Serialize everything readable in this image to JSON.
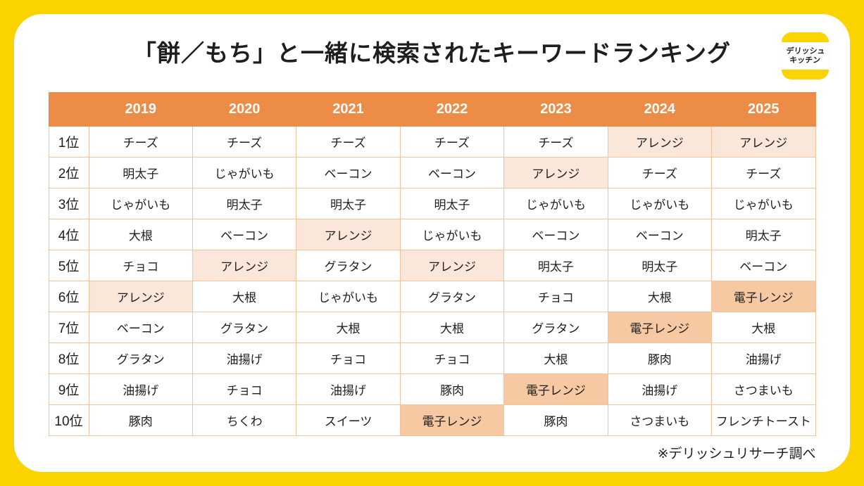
{
  "title": "「餅／もち」と一緒に検索されたキーワードランキング",
  "logo": {
    "line1": "デリッシュ",
    "line2": "キッチン"
  },
  "footnote": "※デリッシュリサーチ調べ",
  "colors": {
    "frame_yellow": "#FBD301",
    "panel_white": "#FFFFFF",
    "header_orange": "#ED8C46",
    "highlight_light": "#FAE7DA",
    "highlight_dark": "#F6C9A3",
    "cell_border": "#F3C49C",
    "text_dark": "#1E1E1E"
  },
  "chart_data": {
    "type": "table",
    "title": "「餅／もち」と一緒に検索されたキーワードランキング",
    "columns": [
      "",
      "2019",
      "2020",
      "2021",
      "2022",
      "2023",
      "2024",
      "2025"
    ],
    "rank_labels": [
      "1位",
      "2位",
      "3位",
      "4位",
      "5位",
      "6位",
      "7位",
      "8位",
      "9位",
      "10位"
    ],
    "highlight_legend": {
      "light": "アレンジ (light orange highlight)",
      "dark": "電子レンジ (dark orange highlight)"
    },
    "rows": [
      {
        "rank": "1位",
        "cells": [
          "チーズ",
          "チーズ",
          "チーズ",
          "チーズ",
          "チーズ",
          "アレンジ",
          "アレンジ"
        ],
        "highlights": [
          "",
          "",
          "",
          "",
          "",
          "light",
          "light"
        ]
      },
      {
        "rank": "2位",
        "cells": [
          "明太子",
          "じゃがいも",
          "ベーコン",
          "ベーコン",
          "アレンジ",
          "チーズ",
          "チーズ"
        ],
        "highlights": [
          "",
          "",
          "",
          "",
          "light",
          "",
          ""
        ]
      },
      {
        "rank": "3位",
        "cells": [
          "じゃがいも",
          "明太子",
          "明太子",
          "明太子",
          "じゃがいも",
          "じゃがいも",
          "じゃがいも"
        ],
        "highlights": [
          "",
          "",
          "",
          "",
          "",
          "",
          ""
        ]
      },
      {
        "rank": "4位",
        "cells": [
          "大根",
          "ベーコン",
          "アレンジ",
          "じゃがいも",
          "ベーコン",
          "ベーコン",
          "明太子"
        ],
        "highlights": [
          "",
          "",
          "light",
          "",
          "",
          "",
          ""
        ]
      },
      {
        "rank": "5位",
        "cells": [
          "チョコ",
          "アレンジ",
          "グラタン",
          "アレンジ",
          "明太子",
          "明太子",
          "ベーコン"
        ],
        "highlights": [
          "",
          "light",
          "",
          "light",
          "",
          "",
          ""
        ]
      },
      {
        "rank": "6位",
        "cells": [
          "アレンジ",
          "大根",
          "じゃがいも",
          "グラタン",
          "チョコ",
          "大根",
          "電子レンジ"
        ],
        "highlights": [
          "light",
          "",
          "",
          "",
          "",
          "",
          "dark"
        ]
      },
      {
        "rank": "7位",
        "cells": [
          "ベーコン",
          "グラタン",
          "大根",
          "大根",
          "グラタン",
          "電子レンジ",
          "大根"
        ],
        "highlights": [
          "",
          "",
          "",
          "",
          "",
          "dark",
          ""
        ]
      },
      {
        "rank": "8位",
        "cells": [
          "グラタン",
          "油揚げ",
          "チョコ",
          "チョコ",
          "大根",
          "豚肉",
          "油揚げ"
        ],
        "highlights": [
          "",
          "",
          "",
          "",
          "",
          "",
          ""
        ]
      },
      {
        "rank": "9位",
        "cells": [
          "油揚げ",
          "チョコ",
          "油揚げ",
          "豚肉",
          "電子レンジ",
          "油揚げ",
          "さつまいも"
        ],
        "highlights": [
          "",
          "",
          "",
          "",
          "dark",
          "",
          ""
        ]
      },
      {
        "rank": "10位",
        "cells": [
          "豚肉",
          "ちくわ",
          "スイーツ",
          "電子レンジ",
          "豚肉",
          "さつまいも",
          "フレンチトースト"
        ],
        "highlights": [
          "",
          "",
          "",
          "dark",
          "",
          "",
          ""
        ]
      }
    ]
  }
}
